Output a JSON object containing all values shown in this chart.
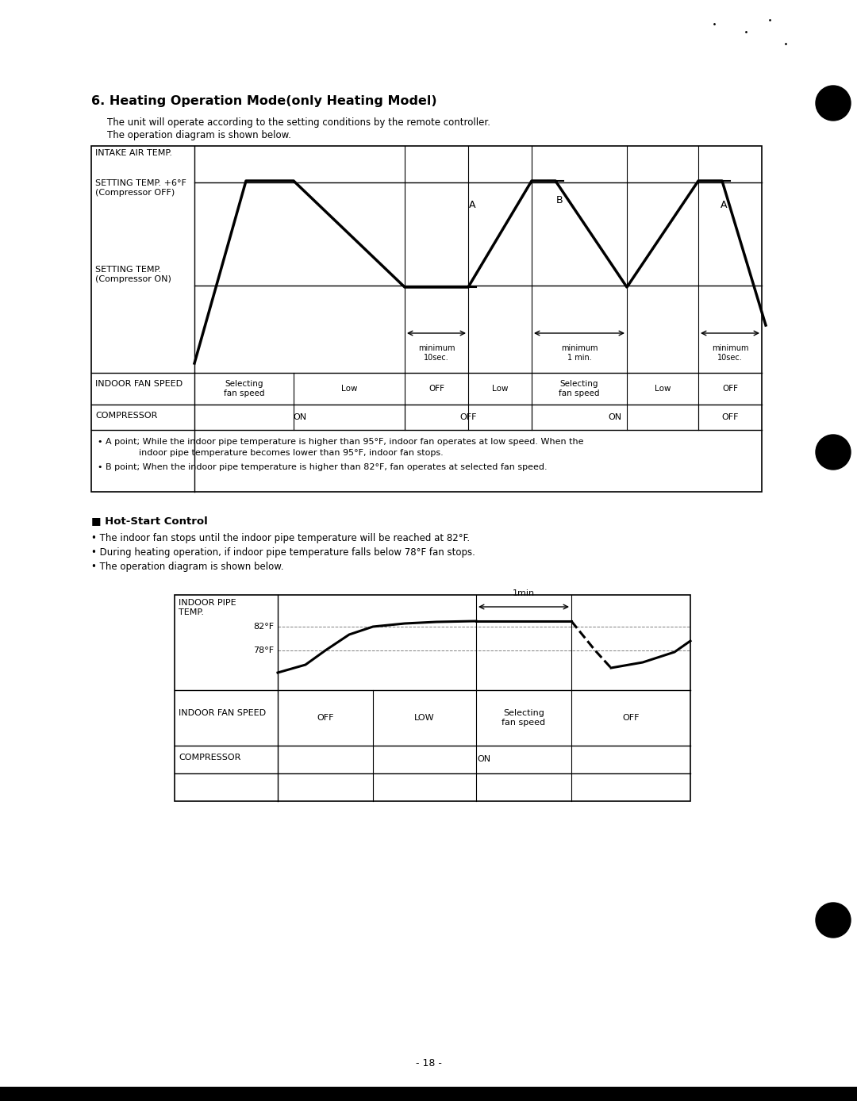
{
  "title": "6. Heating Operation Mode(only Heating Model)",
  "subtitle_line1": "The unit will operate according to the setting conditions by the remote controller.",
  "subtitle_line2": "The operation diagram is shown below.",
  "bg_color": "#ffffff",
  "section2_title": "■ Hot-Start Control",
  "bullet1": "• The indoor fan stops until the indoor pipe temperature will be reached at 82°F.",
  "bullet2": "• During heating operation, if indoor pipe temperature falls below 78°F fan stops.",
  "bullet3": "• The operation diagram is shown below.",
  "page_number": "- 18 -",
  "note1_line1": "• A point; While the indoor pipe temperature is higher than 95°F, indoor fan operates at low speed. When the",
  "note1_line2": "indoor pipe temperature becomes lower than 95°F, indoor fan stops.",
  "note2": "• B point; When the indoor pipe temperature is higher than 82°F, fan operates at selected fan speed."
}
